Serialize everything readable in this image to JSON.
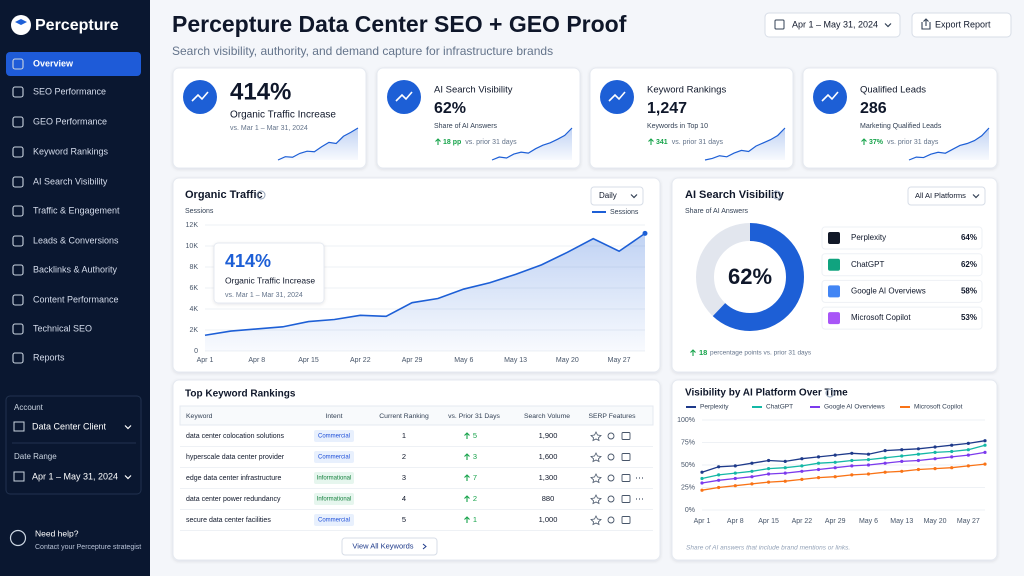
{
  "sidebar": {
    "brand": "Percepture",
    "nav": [
      "Overview",
      "SEO Performance",
      "GEO Performance",
      "Keyword Rankings",
      "AI Search Visibility",
      "Traffic & Engagement",
      "Leads & Conversions",
      "Backlinks & Authority",
      "Content Performance",
      "Technical SEO",
      "Reports"
    ],
    "account_label": "Account",
    "account": "Data Center Client",
    "date_label": "Date Range",
    "date": "Apr 1 – May 31, 2024",
    "help_title": "Need help?",
    "help_text": "Contact your Percepture strategist"
  },
  "header": {
    "title": "Percepture Data Center SEO + GEO Proof",
    "subtitle": "Search visibility, authority, and demand capture for infrastructure brands",
    "date_button": "Apr 1 – May 31, 2024",
    "export": "Export Report"
  },
  "kpis": [
    {
      "value": "414%",
      "label": "Organic Traffic Increase",
      "note": "vs. Mar 1 – Mar 31, 2024",
      "sparkline": [
        12,
        18,
        17,
        24,
        28,
        27,
        36,
        44,
        42,
        55,
        62,
        70
      ]
    },
    {
      "title": "AI Search Visibility",
      "value": "62%",
      "label": "Share of AI Answers",
      "delta": "18 pp",
      "note": "vs. prior 31 days",
      "sparkline": [
        10,
        16,
        14,
        22,
        26,
        24,
        33,
        40,
        45,
        52,
        60,
        75
      ]
    },
    {
      "title": "Keyword Rankings",
      "value": "1,247",
      "label": "Keywords in Top 10",
      "delta": "341",
      "note": "vs. prior 31 days",
      "sparkline": [
        12,
        15,
        20,
        18,
        25,
        30,
        28,
        38,
        44,
        50,
        58,
        72
      ]
    },
    {
      "title": "Qualified Leads",
      "value": "286",
      "label": "Marketing Qualified Leads",
      "delta": "37%",
      "note": "vs. prior 31 days",
      "sparkline": [
        8,
        14,
        13,
        20,
        24,
        22,
        30,
        38,
        42,
        48,
        58,
        74
      ]
    }
  ],
  "chart_data": [
    {
      "type": "area",
      "title": "Organic Traffic",
      "control": "Daily",
      "y_label": "Sessions",
      "categories": [
        "Apr 1",
        null,
        "Apr 8",
        null,
        "Apr 15",
        null,
        "Apr 22",
        null,
        "Apr 29",
        null,
        "May 6",
        null,
        "May 13",
        null,
        "May 20",
        null,
        "May 27",
        null
      ],
      "series": [
        {
          "name": "Sessions",
          "color": "#1d5fd6",
          "values": [
            1500,
            1900,
            2100,
            2300,
            2800,
            3000,
            3400,
            3300,
            4600,
            5000,
            5900,
            6500,
            7300,
            8200,
            9400,
            10700,
            9500,
            11200
          ]
        }
      ],
      "ylim": [
        0,
        12000
      ],
      "yticks": [
        0,
        {
          "value": 2000,
          "label": "2K"
        },
        {
          "value": 4000,
          "label": "4K"
        },
        {
          "value": 6000,
          "label": "6K"
        },
        {
          "value": 8000,
          "label": "8K"
        },
        {
          "value": 10000,
          "label": "10K"
        },
        {
          "value": 12000,
          "label": "12K"
        }
      ],
      "callout": {
        "value": "414%",
        "label": "Organic Traffic Increase",
        "note": "vs. Mar 1 – Mar 31, 2024"
      }
    },
    {
      "type": "donut",
      "title": "AI Search Visibility",
      "control": "All AI Platforms",
      "subtitle": "Share of AI Answers",
      "values": [
        62
      ],
      "value_labels": [
        "62%"
      ],
      "color": "#1d5fd6",
      "platforms": [
        {
          "name": "Perplexity",
          "share": "64%"
        },
        {
          "name": "ChatGPT",
          "share": "62%"
        },
        {
          "name": "Google AI Overviews",
          "share": "58%"
        },
        {
          "name": "Microsoft Copilot",
          "share": "53%"
        }
      ],
      "footer_value": "18",
      "footer_text": "percentage points vs. prior 31 days"
    },
    {
      "type": "line",
      "title": "Visibility by AI Platform Over Time",
      "categories": [
        "Apr 1",
        null,
        "Apr 8",
        null,
        "Apr 15",
        null,
        "Apr 22",
        null,
        "Apr 29",
        null,
        "May 6",
        null,
        "May 13",
        null,
        "May 20",
        null,
        "May 27",
        null
      ],
      "series": [
        {
          "name": "Perplexity",
          "color": "#1e3a8a",
          "values": [
            42,
            48,
            49,
            52,
            55,
            54,
            57,
            59,
            61,
            63,
            62,
            66,
            67,
            68,
            70,
            72,
            74,
            77
          ]
        },
        {
          "name": "ChatGPT",
          "color": "#14b8a6",
          "values": [
            35,
            39,
            41,
            43,
            46,
            47,
            49,
            52,
            53,
            55,
            56,
            58,
            60,
            62,
            64,
            65,
            67,
            72
          ]
        },
        {
          "name": "Google AI Overviews",
          "color": "#7c3aed",
          "values": [
            30,
            33,
            35,
            37,
            40,
            41,
            43,
            45,
            47,
            49,
            50,
            52,
            54,
            55,
            57,
            59,
            61,
            64
          ]
        },
        {
          "name": "Microsoft Copilot",
          "color": "#f97316",
          "values": [
            22,
            25,
            27,
            29,
            31,
            32,
            34,
            36,
            37,
            39,
            40,
            42,
            43,
            45,
            46,
            47,
            49,
            51
          ]
        }
      ],
      "ylim": [
        0,
        100
      ],
      "yticks": [
        {
          "value": 0,
          "label": "0%"
        },
        {
          "value": 25,
          "label": "25%"
        },
        {
          "value": 50,
          "label": "50%"
        },
        {
          "value": 75,
          "label": "75%"
        },
        {
          "value": 100,
          "label": "100%"
        }
      ],
      "footnote": "Share of AI answers that include brand mentions or links."
    }
  ],
  "keywords": {
    "title": "Top Keyword Rankings",
    "columns": [
      "Keyword",
      "Intent",
      "Current Ranking",
      "vs. Prior 31 Days",
      "Search Volume",
      "SERP Features"
    ],
    "rows": [
      [
        "data center colocation solutions",
        "Commercial",
        "1",
        "5",
        "1,900"
      ],
      [
        "hyperscale data center provider",
        "Commercial",
        "2",
        "3",
        "1,600"
      ],
      [
        "edge data center infrastructure",
        "Informational",
        "3",
        "7",
        "1,300"
      ],
      [
        "data center power redundancy",
        "Informational",
        "4",
        "2",
        "880"
      ],
      [
        "secure data center facilities",
        "Commercial",
        "5",
        "1",
        "1,000"
      ]
    ],
    "link": "View All Keywords"
  }
}
